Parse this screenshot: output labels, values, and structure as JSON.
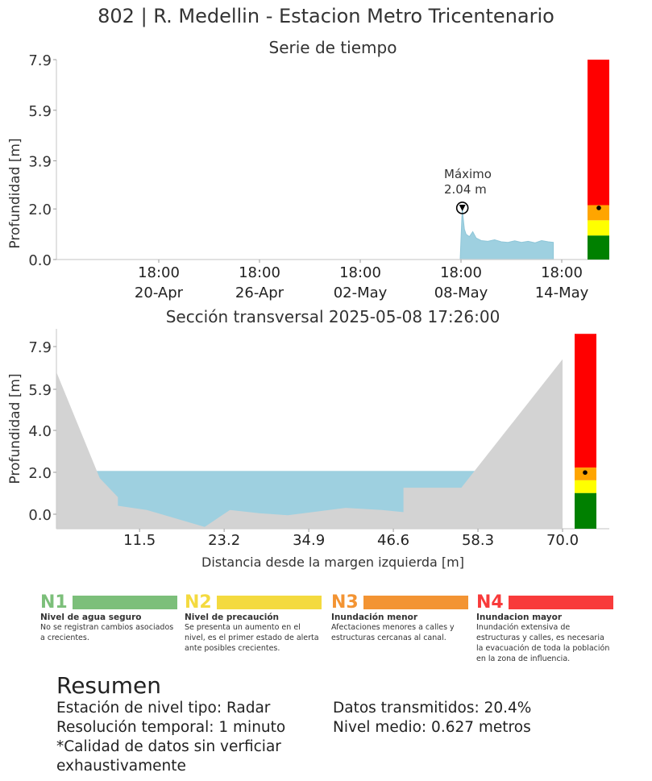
{
  "header": {
    "title": "802 | R. Medellin - Estacion Metro Tricentenario"
  },
  "chart_data": [
    {
      "type": "area",
      "title": "Serie de tiempo",
      "ylabel": "Profundidad [m]",
      "ylim": [
        0,
        7.9
      ],
      "ytick_labels": [
        "0.0",
        "2.0",
        "3.9",
        "5.9",
        "7.9"
      ],
      "yticks": [
        0,
        2.0,
        3.9,
        5.9,
        7.9
      ],
      "xtick_labels": [
        {
          "time": "18:00",
          "date": "20-Apr"
        },
        {
          "time": "18:00",
          "date": "26-Apr"
        },
        {
          "time": "18:00",
          "date": "02-May"
        },
        {
          "time": "18:00",
          "date": "08-May"
        },
        {
          "time": "18:00",
          "date": "14-May"
        }
      ],
      "x_days": [
        [
          -0.05,
          0.0
        ],
        [
          0.0,
          0.8
        ],
        [
          0.05,
          1.6
        ],
        [
          0.08,
          2.04
        ],
        [
          0.12,
          1.7
        ],
        [
          0.2,
          1.2
        ],
        [
          0.3,
          1.0
        ],
        [
          0.5,
          0.9
        ],
        [
          0.7,
          1.1
        ],
        [
          0.9,
          0.85
        ],
        [
          1.2,
          0.75
        ],
        [
          1.6,
          0.72
        ],
        [
          2.0,
          0.78
        ],
        [
          2.4,
          0.7
        ],
        [
          2.8,
          0.68
        ],
        [
          3.2,
          0.74
        ],
        [
          3.6,
          0.68
        ],
        [
          4.0,
          0.72
        ],
        [
          4.4,
          0.66
        ],
        [
          4.8,
          0.75
        ],
        [
          5.2,
          0.7
        ],
        [
          5.5,
          0.68
        ]
      ],
      "x_note": "pairs of [days relative to 08-May 18:00, depth m]",
      "annotation": {
        "label_line1": "Máximo",
        "label_line2": "2.04 m",
        "value": 2.04
      },
      "current_level": 2.04,
      "level_bar": [
        {
          "from": 0.0,
          "to": 0.95,
          "color": "#008000"
        },
        {
          "from": 0.95,
          "to": 1.55,
          "color": "#ffff00"
        },
        {
          "from": 1.55,
          "to": 2.15,
          "color": "#ffa500"
        },
        {
          "from": 2.15,
          "to": 7.9,
          "color": "#ff0000"
        }
      ]
    },
    {
      "type": "area",
      "title": "Sección transversal 2025-05-08 17:26:00",
      "xlabel": "Distancia desde la margen izquierda [m]",
      "ylabel": "Profundidad [m]",
      "xlim": [
        0,
        70.0
      ],
      "ylim": [
        -0.7,
        8.5
      ],
      "xticks": [
        11.5,
        23.2,
        34.9,
        46.6,
        58.3,
        70.0
      ],
      "xtick_labels": [
        "11.5",
        "23.2",
        "34.9",
        "46.6",
        "58.3",
        "70.0"
      ],
      "yticks": [
        0.0,
        2.0,
        4.0,
        5.9,
        7.9
      ],
      "ytick_labels": [
        "0.0",
        "2.0",
        "4.0",
        "5.9",
        "7.9"
      ],
      "water_level": 2.04,
      "ground_profile": [
        [
          0,
          6.7
        ],
        [
          6,
          1.7
        ],
        [
          8.5,
          0.8
        ],
        [
          8.5,
          0.4
        ],
        [
          12.5,
          0.2
        ],
        [
          20.5,
          -0.6
        ],
        [
          24,
          0.2
        ],
        [
          28,
          0.05
        ],
        [
          32,
          -0.05
        ],
        [
          40,
          0.3
        ],
        [
          45,
          0.2
        ],
        [
          48,
          0.1
        ],
        [
          48,
          1.25
        ],
        [
          56,
          1.25
        ],
        [
          70,
          7.3
        ]
      ],
      "current_level": 2.04,
      "level_bar": [
        {
          "from": -0.7,
          "to": 1.0,
          "color": "#008000"
        },
        {
          "from": 1.0,
          "to": 1.6,
          "color": "#ffff00"
        },
        {
          "from": 1.6,
          "to": 2.2,
          "color": "#ffa500"
        },
        {
          "from": 2.2,
          "to": 8.5,
          "color": "#ff0000"
        }
      ]
    }
  ],
  "legend": [
    {
      "code": "N1",
      "color": "#7cbf7a",
      "code_color": "#7cbf7a",
      "name": "Nivel de agua seguro",
      "desc": "No se registran cambios asociados a crecientes."
    },
    {
      "code": "N2",
      "color": "#f4da3f",
      "code_color": "#f4da3f",
      "name": "Nivel de precaución",
      "desc": "Se presenta un aumento en el nivel, es el primer estado de alerta ante posibles crecientes."
    },
    {
      "code": "N3",
      "color": "#f39433",
      "code_color": "#f39433",
      "name": "Inundación menor",
      "desc": "Afectaciones menores a calles y estructuras cercanas al canal."
    },
    {
      "code": "N4",
      "color": "#f83b3b",
      "code_color": "#f83b3b",
      "name": "Inundacion mayor",
      "desc": "Inundación extensiva de estructuras y calles, es necesaria la evacuación de toda la población en la zona de influencia."
    }
  ],
  "summary": {
    "title": "Resumen",
    "left": [
      "Estación de nivel tipo: Radar",
      "Resolución temporal: 1 minuto",
      "*Calidad de datos sin verficiar exhaustivamente"
    ],
    "right": [
      "Datos transmitidos: 20.4%",
      "Nivel medio: 0.627 metros"
    ]
  }
}
